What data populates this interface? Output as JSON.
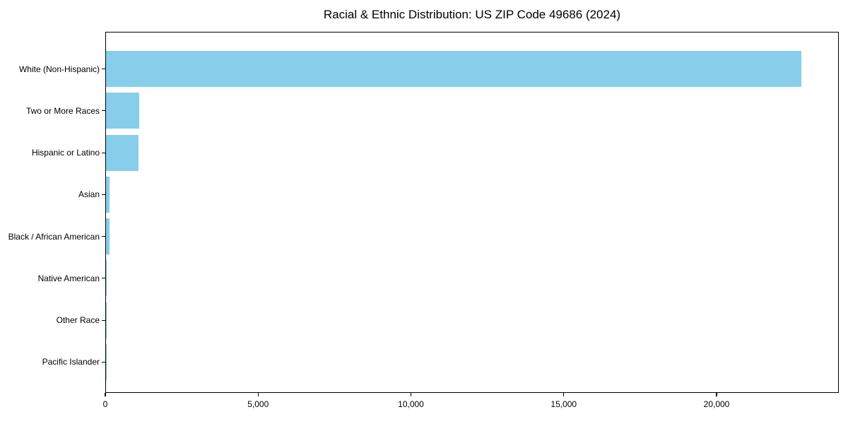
{
  "chart_data": {
    "type": "bar",
    "orientation": "horizontal",
    "title": "Racial & Ethnic Distribution: US ZIP Code 49686 (2024)",
    "categories": [
      "White (Non-Hispanic)",
      "Two or More Races",
      "Hispanic or Latino",
      "Asian",
      "Black / African American",
      "Native American",
      "Other Race",
      "Pacific Islander"
    ],
    "values": [
      22800,
      1100,
      1075,
      125,
      105,
      25,
      8,
      3
    ],
    "xlabel": "",
    "ylabel": "",
    "xlim": [
      0,
      24000
    ],
    "xticks": [
      0,
      5000,
      10000,
      15000,
      20000
    ],
    "xtick_labels": [
      "0",
      "5,000",
      "10,000",
      "15,000",
      "20,000"
    ],
    "bar_color": "#87CEEB",
    "axis_color": "#000000",
    "grid": false,
    "legend": "none"
  }
}
